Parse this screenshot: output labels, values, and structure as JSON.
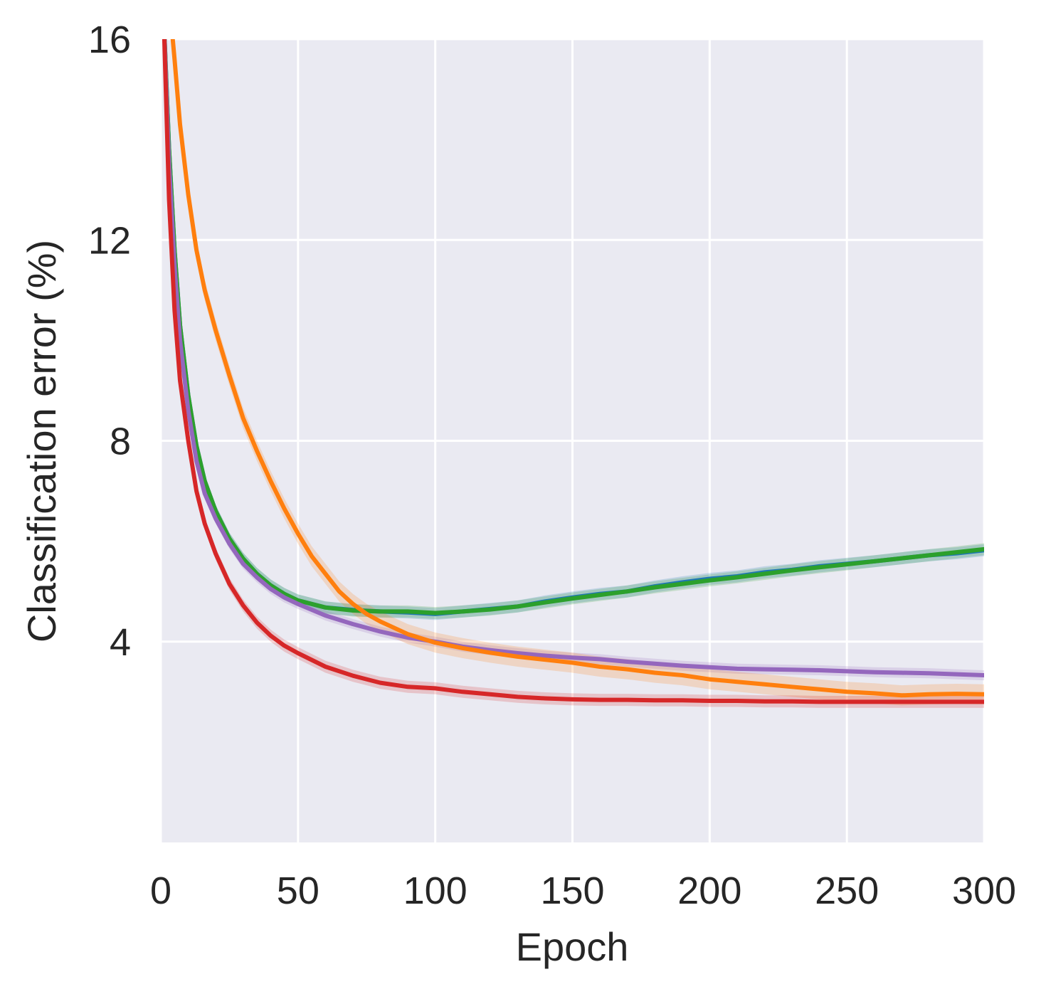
{
  "chart_data": {
    "type": "line",
    "title": "",
    "xlabel": "Epoch",
    "ylabel": "Classification error (%)",
    "xlim": [
      0,
      300
    ],
    "ylim": [
      0,
      16
    ],
    "xticks": [
      0,
      50,
      100,
      150,
      200,
      250,
      300
    ],
    "yticks": [
      4,
      8,
      12,
      16
    ],
    "grid": true,
    "legend": "none",
    "background": "#eaeaf2",
    "grid_color": "#ffffff",
    "series": [
      {
        "color": "#1f77b4",
        "band": 0.12,
        "x": [
          1,
          3,
          5,
          7,
          10,
          13,
          16,
          20,
          25,
          30,
          35,
          40,
          45,
          50,
          60,
          70,
          80,
          90,
          100,
          110,
          120,
          130,
          140,
          150,
          160,
          170,
          180,
          190,
          200,
          210,
          220,
          230,
          240,
          250,
          260,
          270,
          280,
          290,
          300
        ],
        "y": [
          16.5,
          13.8,
          11.8,
          10.3,
          8.9,
          7.9,
          7.2,
          6.6,
          6.05,
          5.65,
          5.35,
          5.12,
          4.95,
          4.82,
          4.68,
          4.63,
          4.6,
          4.58,
          4.55,
          4.6,
          4.65,
          4.7,
          4.8,
          4.88,
          4.95,
          5.0,
          5.1,
          5.18,
          5.25,
          5.3,
          5.38,
          5.43,
          5.5,
          5.55,
          5.6,
          5.66,
          5.72,
          5.76,
          5.82
        ]
      },
      {
        "color": "#2ca02c",
        "band": 0.12,
        "x": [
          1,
          3,
          5,
          7,
          10,
          13,
          16,
          20,
          25,
          30,
          35,
          40,
          45,
          50,
          60,
          70,
          80,
          90,
          100,
          110,
          120,
          130,
          140,
          150,
          160,
          170,
          180,
          190,
          200,
          210,
          220,
          230,
          240,
          250,
          260,
          270,
          280,
          290,
          300
        ],
        "y": [
          16.5,
          13.8,
          11.8,
          10.3,
          8.9,
          7.9,
          7.2,
          6.6,
          6.05,
          5.65,
          5.35,
          5.12,
          4.95,
          4.82,
          4.68,
          4.62,
          4.6,
          4.6,
          4.57,
          4.6,
          4.64,
          4.7,
          4.78,
          4.86,
          4.93,
          5.0,
          5.08,
          5.15,
          5.22,
          5.28,
          5.35,
          5.42,
          5.48,
          5.54,
          5.6,
          5.66,
          5.72,
          5.78,
          5.84
        ]
      },
      {
        "color": "#9467bd",
        "band": 0.1,
        "x": [
          1,
          3,
          5,
          7,
          10,
          13,
          16,
          20,
          25,
          30,
          35,
          40,
          45,
          50,
          60,
          70,
          80,
          90,
          100,
          110,
          120,
          130,
          140,
          150,
          160,
          170,
          180,
          190,
          200,
          210,
          220,
          230,
          240,
          250,
          260,
          270,
          280,
          290,
          300
        ],
        "y": [
          16.5,
          13.5,
          11.5,
          10.0,
          8.6,
          7.6,
          6.95,
          6.45,
          5.95,
          5.55,
          5.28,
          5.05,
          4.88,
          4.75,
          4.52,
          4.35,
          4.2,
          4.08,
          4.0,
          3.9,
          3.83,
          3.77,
          3.72,
          3.68,
          3.65,
          3.6,
          3.56,
          3.52,
          3.49,
          3.46,
          3.45,
          3.44,
          3.43,
          3.41,
          3.39,
          3.38,
          3.37,
          3.35,
          3.33
        ]
      },
      {
        "color": "#ff7f0e",
        "band": 0.2,
        "x": [
          1,
          3,
          5,
          7,
          10,
          13,
          16,
          20,
          25,
          30,
          35,
          40,
          45,
          50,
          55,
          60,
          65,
          70,
          75,
          80,
          90,
          100,
          110,
          120,
          130,
          140,
          150,
          160,
          170,
          180,
          190,
          200,
          210,
          220,
          230,
          240,
          250,
          260,
          270,
          280,
          290,
          300
        ],
        "y": [
          17.5,
          16.8,
          15.6,
          14.3,
          12.9,
          11.8,
          11.0,
          10.2,
          9.3,
          8.45,
          7.8,
          7.2,
          6.65,
          6.15,
          5.7,
          5.35,
          5.0,
          4.75,
          4.55,
          4.4,
          4.15,
          3.98,
          3.87,
          3.78,
          3.7,
          3.64,
          3.58,
          3.5,
          3.45,
          3.38,
          3.33,
          3.25,
          3.2,
          3.15,
          3.1,
          3.05,
          3.0,
          2.97,
          2.93,
          2.95,
          2.96,
          2.95
        ]
      },
      {
        "color": "#d62728",
        "band": 0.12,
        "x": [
          1,
          3,
          5,
          7,
          10,
          13,
          16,
          20,
          25,
          30,
          35,
          40,
          45,
          50,
          60,
          70,
          80,
          90,
          100,
          110,
          120,
          130,
          140,
          150,
          160,
          170,
          180,
          190,
          200,
          210,
          220,
          230,
          240,
          250,
          260,
          270,
          280,
          290,
          300
        ],
        "y": [
          16.5,
          12.8,
          10.6,
          9.2,
          8.0,
          7.0,
          6.35,
          5.75,
          5.15,
          4.72,
          4.38,
          4.12,
          3.92,
          3.77,
          3.5,
          3.32,
          3.18,
          3.1,
          3.07,
          3.0,
          2.95,
          2.9,
          2.87,
          2.85,
          2.84,
          2.84,
          2.83,
          2.83,
          2.82,
          2.82,
          2.81,
          2.81,
          2.8,
          2.8,
          2.8,
          2.8,
          2.8,
          2.8,
          2.8
        ]
      }
    ]
  }
}
